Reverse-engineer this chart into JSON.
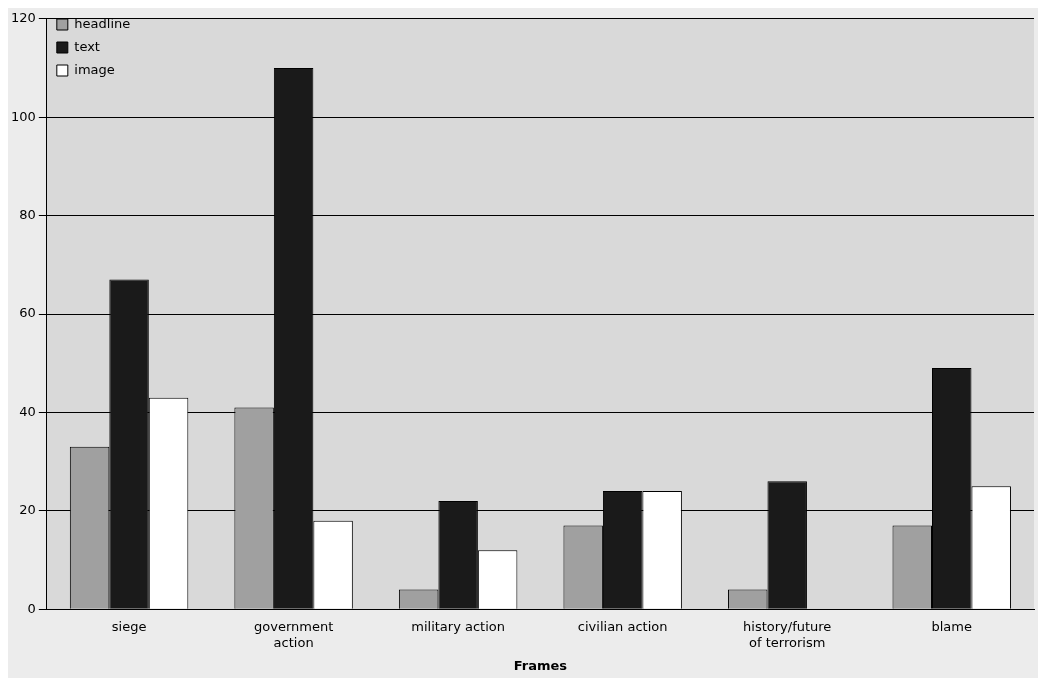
{
  "chart_data": {
    "type": "bar",
    "xlabel": "Frames",
    "categories": [
      "siege",
      "government action",
      "military action",
      "civilian action",
      "history/future of terrorism",
      "blame"
    ],
    "series": [
      {
        "name": "headline",
        "color": "#a0a0a0",
        "values": [
          33,
          41,
          4,
          17,
          4,
          17
        ]
      },
      {
        "name": "text",
        "color": "#1a1a1a",
        "values": [
          67,
          110,
          22,
          24,
          26,
          49
        ]
      },
      {
        "name": "image",
        "color": "#ffffff",
        "values": [
          43,
          18,
          12,
          24,
          0,
          25
        ]
      }
    ],
    "ylim": [
      0,
      120
    ],
    "yticks": [
      0,
      20,
      40,
      60,
      80,
      100,
      120
    ],
    "grid": "y",
    "legend": "top left"
  }
}
